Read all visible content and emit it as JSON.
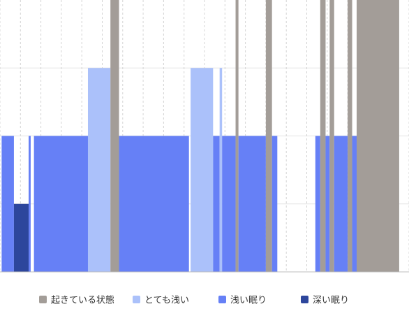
{
  "chart_data": {
    "type": "sleep-stage-timeline",
    "x_range": [
      0,
      100
    ],
    "stage_levels": {
      "awake": 4,
      "very_light": 3,
      "light": 2,
      "deep": 1
    },
    "y_range": [
      0,
      4
    ],
    "grid": true,
    "legend_position": "bottom",
    "vertical_gridline_count": 20,
    "colors": {
      "awake": "#a39d98",
      "very_light": "#abc1fa",
      "light": "#6680f6",
      "deep": "#2d469c",
      "grid_solid": "#e3e3e3",
      "grid_dashed": "#d4d4d4",
      "baseline": "#bdbdbd"
    },
    "legend": [
      {
        "key": "awake",
        "label": "起きている状態"
      },
      {
        "key": "very_light",
        "label": "とても浅い"
      },
      {
        "key": "light",
        "label": "浅い眠り"
      },
      {
        "key": "deep",
        "label": "深い眠り"
      }
    ],
    "segments": [
      {
        "stage": "light",
        "start": 0.4,
        "end": 3.4
      },
      {
        "stage": "deep",
        "start": 3.4,
        "end": 7.0
      },
      {
        "stage": "light",
        "start": 7.0,
        "end": 7.5
      },
      {
        "stage": "light",
        "start": 8.3,
        "end": 21.5
      },
      {
        "stage": "very_light",
        "start": 21.5,
        "end": 27.0
      },
      {
        "stage": "awake",
        "start": 27.0,
        "end": 29.1
      },
      {
        "stage": "light",
        "start": 29.1,
        "end": 46.2
      },
      {
        "stage": "very_light",
        "start": 46.6,
        "end": 52.1
      },
      {
        "stage": "light",
        "start": 52.1,
        "end": 53.7
      },
      {
        "stage": "very_light",
        "start": 53.7,
        "end": 54.3
      },
      {
        "stage": "light",
        "start": 54.3,
        "end": 57.6
      },
      {
        "stage": "awake",
        "start": 57.6,
        "end": 58.3
      },
      {
        "stage": "light",
        "start": 58.3,
        "end": 65.0
      },
      {
        "stage": "awake",
        "start": 65.0,
        "end": 66.5
      },
      {
        "stage": "light",
        "start": 66.5,
        "end": 67.8
      },
      {
        "stage": "light",
        "start": 77.1,
        "end": 78.3
      },
      {
        "stage": "awake",
        "start": 78.3,
        "end": 79.6
      },
      {
        "stage": "light",
        "start": 79.6,
        "end": 80.6
      },
      {
        "stage": "awake",
        "start": 80.6,
        "end": 81.7
      },
      {
        "stage": "light",
        "start": 81.7,
        "end": 85.0
      },
      {
        "stage": "awake",
        "start": 85.0,
        "end": 86.1
      },
      {
        "stage": "light",
        "start": 86.1,
        "end": 87.2
      },
      {
        "stage": "awake",
        "start": 87.2,
        "end": 97.6
      }
    ]
  }
}
